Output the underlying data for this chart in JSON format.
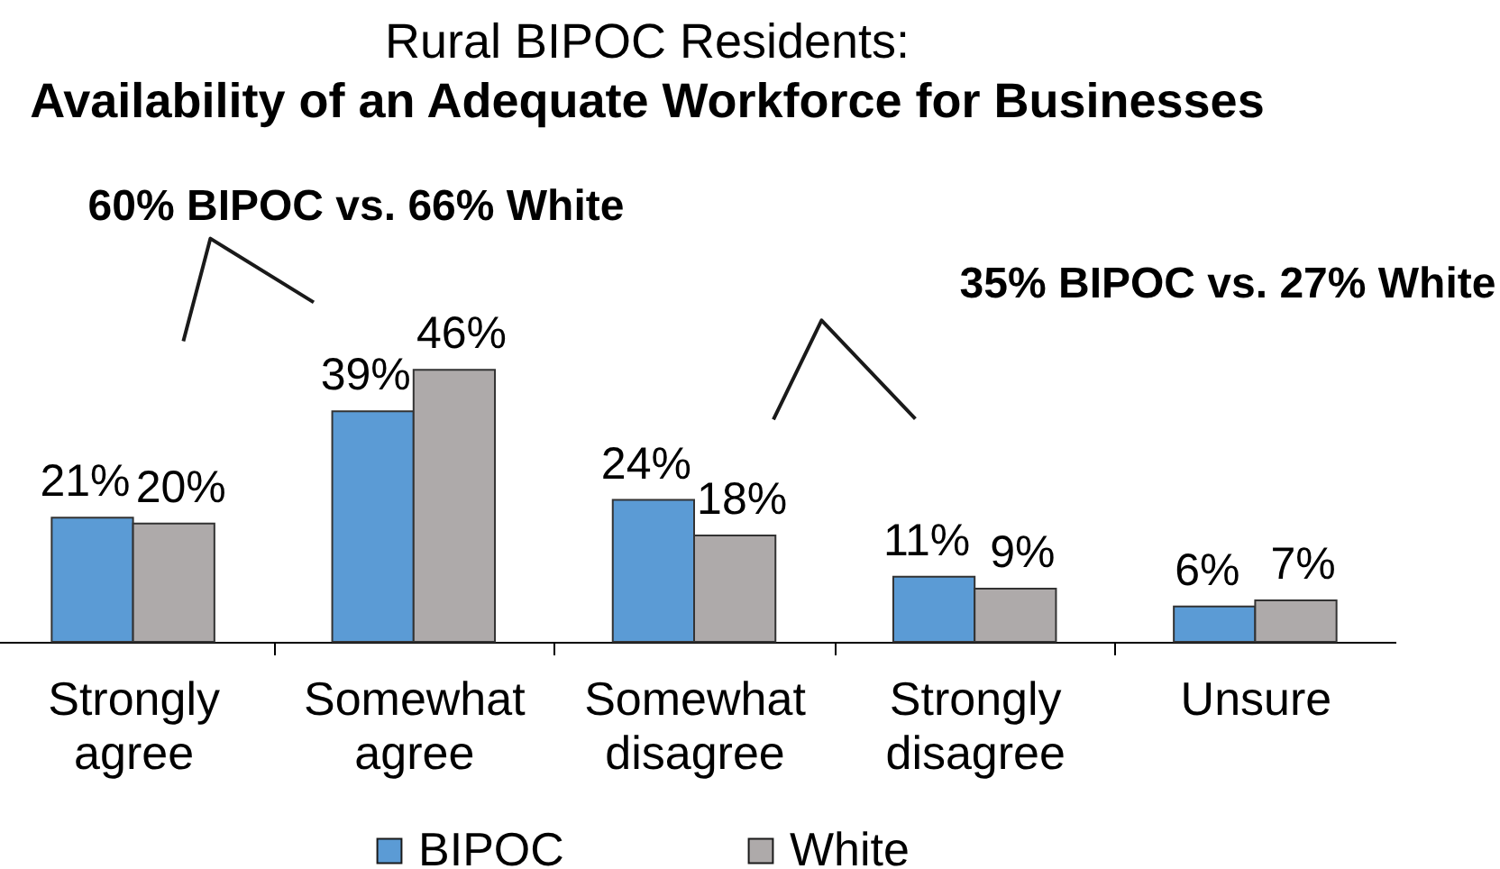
{
  "chart_data": {
    "type": "bar",
    "title": "Rural BIPOC Residents:",
    "subtitle": "Availability of an Adequate Workforce for Businesses",
    "categories": [
      "Strongly agree",
      "Somewhat agree",
      "Somewhat disagree",
      "Strongly disagree",
      "Unsure"
    ],
    "series": [
      {
        "name": "BIPOC",
        "color": "#5b9bd5",
        "values": [
          21,
          39,
          24,
          11,
          6
        ],
        "value_labels": [
          "21%",
          "39%",
          "24%",
          "11%",
          "6%"
        ]
      },
      {
        "name": "White",
        "color": "#aeaaaa",
        "values": [
          20,
          46,
          18,
          9,
          7
        ],
        "value_labels": [
          "20%",
          "46%",
          "18%",
          "9%",
          "7%"
        ]
      }
    ],
    "annotations": [
      "60% BIPOC vs. 66% White",
      "35% BIPOC vs. 27% White"
    ],
    "legend": "bottom"
  }
}
